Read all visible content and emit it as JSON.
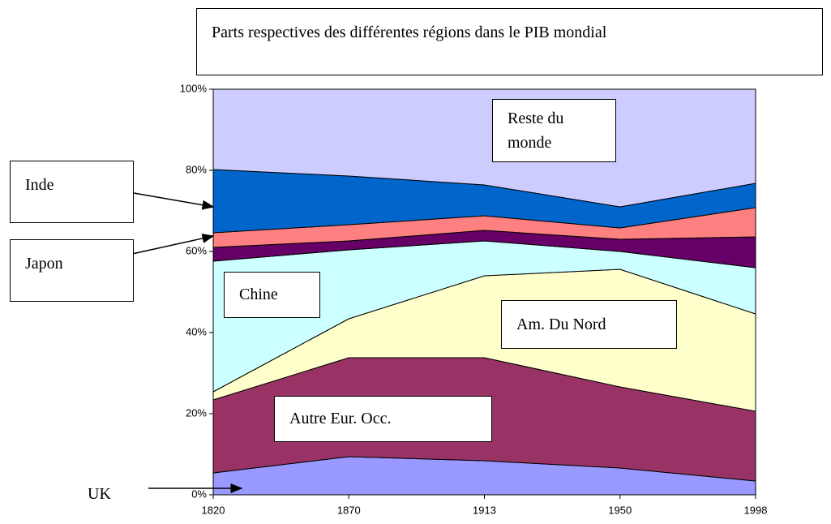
{
  "chart_data": {
    "type": "area",
    "stacked": true,
    "title": "Parts respectives des différentes régions dans le PIB mondial",
    "categories": [
      "1820",
      "1870",
      "1913",
      "1950",
      "1998"
    ],
    "series": [
      {
        "name": "UK",
        "color": "#9999ff",
        "values": [
          5.4,
          9.4,
          8.4,
          6.6,
          3.4
        ]
      },
      {
        "name": "Autre Eur. Occ.",
        "color": "#993366",
        "values": [
          18.0,
          24.4,
          25.4,
          20.0,
          17.2
        ]
      },
      {
        "name": "Am. Du Nord",
        "color": "#ffffcc",
        "values": [
          2.0,
          9.6,
          20.2,
          29.0,
          24.0
        ]
      },
      {
        "name": "Chine",
        "color": "#ccffff",
        "values": [
          32.2,
          17.0,
          8.6,
          4.4,
          11.4
        ]
      },
      {
        "color": "#660066",
        "values": [
          3.4,
          2.2,
          2.6,
          3.0,
          7.6
        ]
      },
      {
        "name": "Japon",
        "color": "#ff8080",
        "values": [
          3.6,
          4.0,
          3.6,
          2.8,
          7.2
        ]
      },
      {
        "name": "Inde",
        "color": "#0066cc",
        "values": [
          15.6,
          12.0,
          7.6,
          5.2,
          6.0
        ]
      },
      {
        "name": "Reste du monde",
        "color": "#ccccff",
        "values": [
          19.8,
          21.4,
          23.6,
          29.0,
          23.2
        ]
      }
    ],
    "ylim": [
      0,
      100
    ],
    "yticks": [
      {
        "value": 0,
        "label": "0%"
      },
      {
        "value": 20,
        "label": "20%"
      },
      {
        "value": 40,
        "label": "40%"
      },
      {
        "value": 60,
        "label": "60%"
      },
      {
        "value": 80,
        "label": "80%"
      },
      {
        "value": 100,
        "label": "100%"
      }
    ]
  }
}
